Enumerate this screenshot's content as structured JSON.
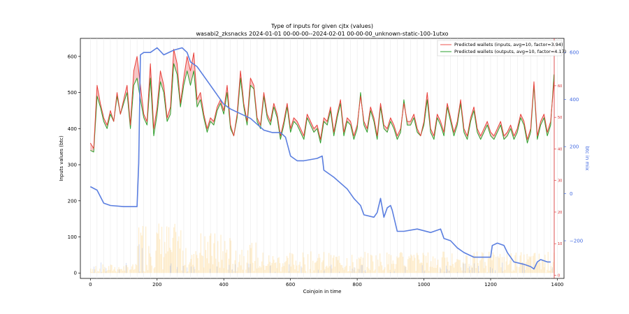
{
  "chart_data": {
    "type": "line",
    "title": "Type of inputs for given cjtx (values)",
    "subtitle": "wasabi2_zksnacks 2024-01-01 00-00-00--2024-02-01 00-00-00_unknown-static-100-1utxo",
    "xlabel": "Coinjoin in time",
    "ylabel": "Inputs values (btc)",
    "y2label": "btc in mix",
    "xlim": [
      -30,
      1420
    ],
    "ylim": [
      -15,
      650
    ],
    "y_small_lim": [
      -1,
      75
    ],
    "y2_lim": [
      -360,
      660
    ],
    "x_ticks": [
      "0",
      "200",
      "400",
      "600",
      "800",
      "1000",
      "1200",
      "1400"
    ],
    "y_ticks": [
      "0",
      "100",
      "200",
      "300",
      "400",
      "500",
      "600"
    ],
    "y_small_ticks": [
      "0",
      "10",
      "20",
      "30",
      "40",
      "50",
      "60"
    ],
    "y2_ticks": [
      "−200",
      "0",
      "200",
      "400",
      "600"
    ],
    "legend": [
      {
        "label": "Predicted wallets (inputs, avg=10, factor=3.94)",
        "color": "#ef6f6c"
      },
      {
        "label": "Predicted wallets (outputs, avg=10, factor=4.17)",
        "color": "#4caf50"
      }
    ],
    "legend_position": "top-right",
    "vertical_gridlines_every": 20,
    "series": [
      {
        "name": "Predicted wallets (inputs, avg=10, factor=3.94)",
        "color": "#e8403a",
        "x": [
          0,
          10,
          20,
          30,
          40,
          50,
          60,
          70,
          80,
          90,
          100,
          110,
          120,
          130,
          140,
          150,
          160,
          170,
          180,
          190,
          200,
          210,
          220,
          230,
          240,
          250,
          260,
          270,
          280,
          290,
          300,
          310,
          320,
          330,
          340,
          350,
          360,
          370,
          380,
          390,
          400,
          410,
          420,
          430,
          440,
          450,
          460,
          470,
          480,
          490,
          500,
          510,
          520,
          530,
          540,
          550,
          560,
          570,
          580,
          590,
          600,
          610,
          620,
          630,
          640,
          650,
          660,
          670,
          680,
          690,
          700,
          710,
          720,
          730,
          740,
          750,
          760,
          770,
          780,
          790,
          800,
          810,
          820,
          830,
          840,
          850,
          860,
          870,
          880,
          890,
          900,
          910,
          920,
          930,
          940,
          950,
          960,
          970,
          980,
          990,
          1000,
          1010,
          1020,
          1030,
          1040,
          1050,
          1060,
          1070,
          1080,
          1090,
          1100,
          1110,
          1120,
          1130,
          1140,
          1150,
          1160,
          1170,
          1180,
          1190,
          1200,
          1210,
          1220,
          1230,
          1240,
          1250,
          1260,
          1270,
          1280,
          1290,
          1300,
          1310,
          1320,
          1330,
          1340,
          1350,
          1360,
          1370,
          1380,
          1390
        ],
        "values": [
          360,
          345,
          520,
          470,
          430,
          410,
          450,
          420,
          500,
          440,
          480,
          520,
          410,
          560,
          600,
          520,
          440,
          420,
          580,
          400,
          460,
          560,
          520,
          430,
          460,
          620,
          580,
          470,
          540,
          600,
          560,
          610,
          480,
          500,
          440,
          400,
          430,
          420,
          460,
          480,
          450,
          520,
          410,
          380,
          440,
          560,
          470,
          420,
          540,
          520,
          430,
          410,
          500,
          440,
          420,
          470,
          440,
          380,
          420,
          470,
          400,
          430,
          420,
          400,
          380,
          440,
          420,
          400,
          410,
          370,
          430,
          420,
          460,
          390,
          440,
          480,
          390,
          430,
          420,
          380,
          410,
          490,
          420,
          400,
          460,
          430,
          380,
          470,
          410,
          400,
          430,
          410,
          380,
          400,
          470,
          420,
          420,
          440,
          400,
          380,
          420,
          500,
          400,
          380,
          440,
          420,
          390,
          470,
          430,
          390,
          420,
          480,
          400,
          380,
          430,
          460,
          400,
          380,
          400,
          420,
          390,
          380,
          400,
          420,
          380,
          390,
          410,
          380,
          400,
          440,
          420,
          370,
          400,
          530,
          380,
          420,
          440,
          390,
          420,
          530
        ]
      },
      {
        "name": "Predicted wallets (outputs, avg=10, factor=4.17)",
        "color": "#2ca02c",
        "x": [
          0,
          10,
          20,
          30,
          40,
          50,
          60,
          70,
          80,
          90,
          100,
          110,
          120,
          130,
          140,
          150,
          160,
          170,
          180,
          190,
          200,
          210,
          220,
          230,
          240,
          250,
          260,
          270,
          280,
          290,
          300,
          310,
          320,
          330,
          340,
          350,
          360,
          370,
          380,
          390,
          400,
          410,
          420,
          430,
          440,
          450,
          460,
          470,
          480,
          490,
          500,
          510,
          520,
          530,
          540,
          550,
          560,
          570,
          580,
          590,
          600,
          610,
          620,
          630,
          640,
          650,
          660,
          670,
          680,
          690,
          700,
          710,
          720,
          730,
          740,
          750,
          760,
          770,
          780,
          790,
          800,
          810,
          820,
          830,
          840,
          850,
          860,
          870,
          880,
          890,
          900,
          910,
          920,
          930,
          940,
          950,
          960,
          970,
          980,
          990,
          1000,
          1010,
          1020,
          1030,
          1040,
          1050,
          1060,
          1070,
          1080,
          1090,
          1100,
          1110,
          1120,
          1130,
          1140,
          1150,
          1160,
          1170,
          1180,
          1190,
          1200,
          1210,
          1220,
          1230,
          1240,
          1250,
          1260,
          1270,
          1280,
          1290,
          1300,
          1310,
          1320,
          1330,
          1340,
          1350,
          1360,
          1370,
          1380,
          1390
        ],
        "values": [
          340,
          335,
          490,
          460,
          420,
          400,
          440,
          420,
          490,
          440,
          470,
          500,
          400,
          520,
          540,
          480,
          430,
          410,
          540,
          380,
          440,
          530,
          500,
          420,
          440,
          580,
          550,
          460,
          520,
          560,
          520,
          560,
          460,
          480,
          430,
          390,
          420,
          410,
          450,
          470,
          440,
          500,
          400,
          380,
          430,
          540,
          460,
          410,
          520,
          510,
          420,
          400,
          490,
          430,
          410,
          460,
          430,
          370,
          410,
          460,
          390,
          420,
          410,
          390,
          370,
          430,
          410,
          390,
          400,
          360,
          420,
          410,
          450,
          380,
          430,
          470,
          380,
          420,
          410,
          370,
          400,
          500,
          410,
          390,
          450,
          420,
          370,
          460,
          400,
          390,
          420,
          400,
          370,
          390,
          480,
          410,
          410,
          430,
          390,
          380,
          410,
          480,
          390,
          370,
          430,
          410,
          380,
          460,
          420,
          380,
          410,
          470,
          390,
          370,
          420,
          450,
          390,
          370,
          390,
          410,
          380,
          370,
          390,
          410,
          370,
          380,
          400,
          370,
          390,
          430,
          410,
          360,
          390,
          520,
          370,
          410,
          430,
          380,
          410,
          550
        ]
      },
      {
        "name": "btc in mix",
        "color": "#5b7fe0",
        "axis": "right",
        "x": [
          0,
          20,
          40,
          60,
          100,
          140,
          145,
          150,
          160,
          180,
          200,
          220,
          250,
          275,
          290,
          300,
          320,
          350,
          380,
          400,
          420,
          480,
          520,
          545,
          570,
          585,
          600,
          620,
          640,
          680,
          695,
          700,
          730,
          770,
          790,
          810,
          820,
          850,
          860,
          870,
          880,
          890,
          900,
          905,
          920,
          940,
          980,
          1020,
          1050,
          1060,
          1080,
          1100,
          1120,
          1150,
          1200,
          1205,
          1220,
          1240,
          1250,
          1270,
          1300,
          1320,
          1330,
          1340,
          1350,
          1370,
          1380
        ],
        "values": [
          30,
          15,
          -40,
          -50,
          -55,
          -55,
          130,
          590,
          600,
          600,
          620,
          590,
          610,
          620,
          600,
          560,
          540,
          480,
          420,
          380,
          360,
          320,
          270,
          260,
          260,
          240,
          160,
          140,
          140,
          150,
          160,
          100,
          70,
          20,
          -20,
          -50,
          -90,
          -100,
          -80,
          -20,
          -100,
          -60,
          -50,
          -70,
          -160,
          -160,
          -150,
          -165,
          -150,
          -190,
          -200,
          -230,
          -250,
          -270,
          -270,
          -220,
          -210,
          -220,
          -250,
          -290,
          -300,
          -310,
          -320,
          -290,
          -280,
          -290,
          -290
        ]
      }
    ]
  }
}
